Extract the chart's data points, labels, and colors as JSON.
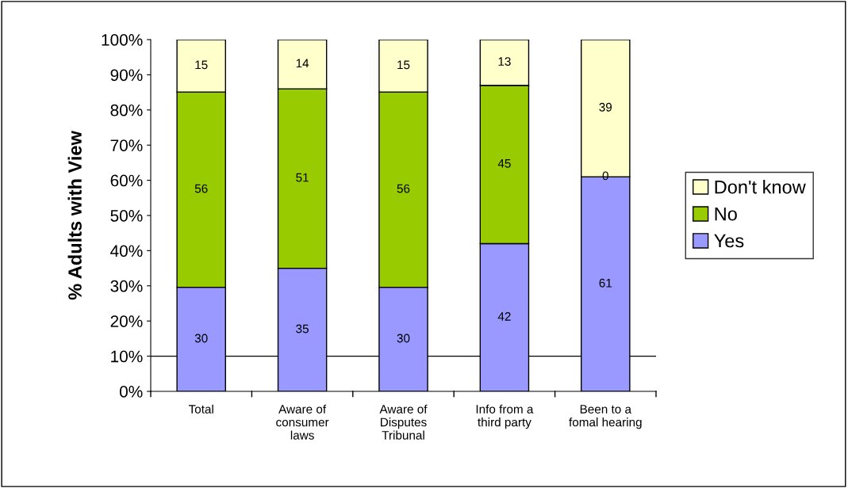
{
  "chart_data": {
    "type": "bar",
    "stacked": true,
    "ylabel": "% Adults with View",
    "categories": [
      "Total",
      "Aware of\nconsumer\nlaws",
      "Aware of\nDisputes\nTribunal",
      "Info from a\nthird party",
      "Been to a\nfomal hearing"
    ],
    "series": [
      {
        "name": "Yes",
        "color": "#9999ff",
        "values": [
          29.6,
          35,
          29.6,
          42,
          61
        ],
        "value_labels": [
          "30",
          "35",
          "30",
          "42",
          "61"
        ]
      },
      {
        "name": "No",
        "color": "#99cc00",
        "values": [
          55.5,
          51,
          55.5,
          45,
          0
        ],
        "value_labels": [
          "56",
          "51",
          "56",
          "45",
          null
        ]
      },
      {
        "name": "Don't know",
        "color": "#ffffcc",
        "values": [
          14.9,
          14,
          14.9,
          13,
          39
        ],
        "value_labels": [
          "15",
          "14",
          "15",
          "13",
          "39"
        ]
      }
    ],
    "ylim": [
      0,
      100
    ],
    "yticks": [
      {
        "value": 0,
        "label": "0%"
      },
      {
        "value": 10,
        "label": "10%"
      },
      {
        "value": 20,
        "label": "20%"
      },
      {
        "value": 30,
        "label": "30%"
      },
      {
        "value": 40,
        "label": "40%"
      },
      {
        "value": 50,
        "label": "50%"
      },
      {
        "value": 60,
        "label": "60%"
      },
      {
        "value": 70,
        "label": "70%"
      },
      {
        "value": 80,
        "label": "80%"
      },
      {
        "value": 90,
        "label": "90%"
      },
      {
        "value": 100,
        "label": "100%"
      }
    ],
    "ref_lines": [
      {
        "axis": "y",
        "value": 10,
        "color": "#000000"
      }
    ],
    "annotations": [
      {
        "text": "0",
        "x": "Been to a\nfomal hearing",
        "y": 61
      }
    ],
    "legend": "right",
    "grid": false
  }
}
